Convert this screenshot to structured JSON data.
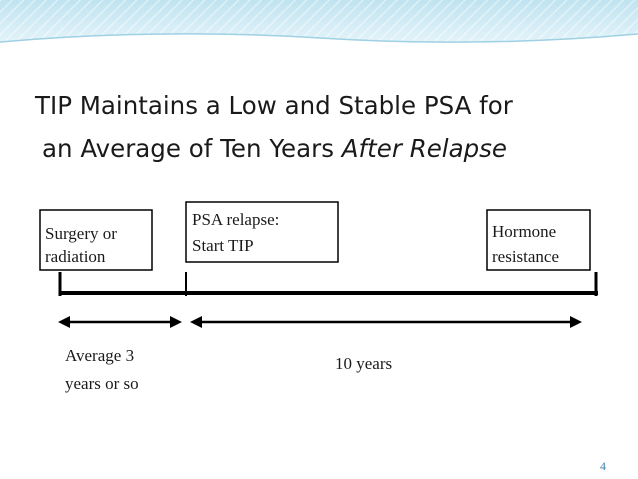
{
  "title": {
    "line1": "TIP Maintains a Low and Stable PSA for",
    "line2": "an Average of Ten Years",
    "line2_italic": "After Relapse"
  },
  "nodes": [
    {
      "lines": [
        "Surgery or",
        "radiation"
      ]
    },
    {
      "lines": [
        "PSA relapse:",
        "Start TIP"
      ]
    },
    {
      "lines": [
        "Hormone",
        "resistance"
      ]
    }
  ],
  "spans": [
    {
      "lines": [
        "Average 3",
        "years or so"
      ]
    },
    {
      "lines": [
        "10 years"
      ]
    }
  ],
  "page_number": "4"
}
